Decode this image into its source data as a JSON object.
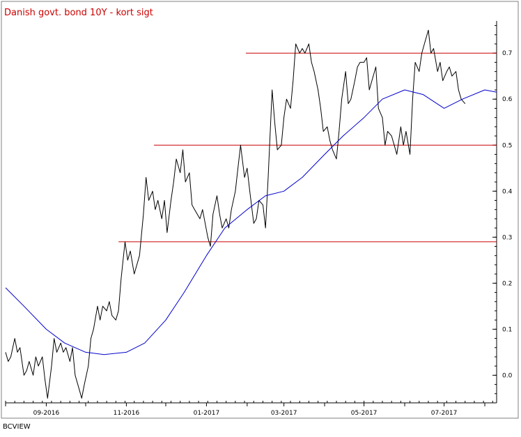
{
  "footer": "BCVIEW",
  "chart_data": {
    "type": "line",
    "title": "Danish govt. bond 10Y - kort sigt",
    "xlabel": "",
    "ylabel": "",
    "x_tick_labels": [
      "09-2016",
      "11-2016",
      "01-2017",
      "03-2017",
      "05-2017",
      "07-2017"
    ],
    "y_ticks": [
      0.0,
      0.1,
      0.2,
      0.3,
      0.4,
      0.5,
      0.6,
      0.7
    ],
    "y_tick_labels": [
      "0.0",
      "0.1",
      "0.2",
      "0.3",
      "0.4",
      "0.5",
      "0.6",
      "0.7"
    ],
    "ylim": [
      -0.06,
      0.77
    ],
    "xlim": [
      "2016-08-01",
      "2017-08-10"
    ],
    "y_axis_position": "right",
    "grid": false,
    "legend": "none",
    "colors": {
      "price": "#000000",
      "moving_average": "#0000cc",
      "levels": "#cc0000",
      "title": "#cc0000"
    },
    "horizontal_lines": [
      {
        "y": 0.29,
        "from": "2016-10-26",
        "to": "2017-08-10"
      },
      {
        "y": 0.5,
        "from": "2016-11-22",
        "to": "2017-08-10"
      },
      {
        "y": 0.7,
        "from": "2017-01-31",
        "to": "2017-08-10"
      }
    ],
    "series": [
      {
        "style": "price",
        "points": [
          [
            "2016-08-01",
            0.05
          ],
          [
            "2016-08-03",
            0.03
          ],
          [
            "2016-08-05",
            0.04
          ],
          [
            "2016-08-08",
            0.08
          ],
          [
            "2016-08-10",
            0.05
          ],
          [
            "2016-08-12",
            0.06
          ],
          [
            "2016-08-15",
            0.0
          ],
          [
            "2016-08-17",
            0.01
          ],
          [
            "2016-08-19",
            0.03
          ],
          [
            "2016-08-22",
            0.0
          ],
          [
            "2016-08-24",
            0.04
          ],
          [
            "2016-08-26",
            0.02
          ],
          [
            "2016-08-29",
            0.04
          ],
          [
            "2016-08-31",
            -0.01
          ],
          [
            "2016-09-02",
            -0.05
          ],
          [
            "2016-09-05",
            0.02
          ],
          [
            "2016-09-07",
            0.08
          ],
          [
            "2016-09-09",
            0.05
          ],
          [
            "2016-09-12",
            0.07
          ],
          [
            "2016-09-14",
            0.05
          ],
          [
            "2016-09-16",
            0.06
          ],
          [
            "2016-09-19",
            0.03
          ],
          [
            "2016-09-21",
            0.06
          ],
          [
            "2016-09-23",
            0.0
          ],
          [
            "2016-09-26",
            -0.03
          ],
          [
            "2016-09-28",
            -0.05
          ],
          [
            "2016-09-30",
            -0.02
          ],
          [
            "2016-10-03",
            0.02
          ],
          [
            "2016-10-05",
            0.08
          ],
          [
            "2016-10-07",
            0.1
          ],
          [
            "2016-10-10",
            0.15
          ],
          [
            "2016-10-12",
            0.12
          ],
          [
            "2016-10-14",
            0.15
          ],
          [
            "2016-10-17",
            0.14
          ],
          [
            "2016-10-19",
            0.16
          ],
          [
            "2016-10-21",
            0.13
          ],
          [
            "2016-10-24",
            0.12
          ],
          [
            "2016-10-26",
            0.14
          ],
          [
            "2016-10-28",
            0.21
          ],
          [
            "2016-10-31",
            0.29
          ],
          [
            "2016-11-02",
            0.25
          ],
          [
            "2016-11-04",
            0.27
          ],
          [
            "2016-11-07",
            0.22
          ],
          [
            "2016-11-09",
            0.24
          ],
          [
            "2016-11-11",
            0.26
          ],
          [
            "2016-11-14",
            0.35
          ],
          [
            "2016-11-16",
            0.43
          ],
          [
            "2016-11-18",
            0.38
          ],
          [
            "2016-11-21",
            0.4
          ],
          [
            "2016-11-23",
            0.36
          ],
          [
            "2016-11-25",
            0.38
          ],
          [
            "2016-11-28",
            0.34
          ],
          [
            "2016-11-30",
            0.38
          ],
          [
            "2016-12-02",
            0.31
          ],
          [
            "2016-12-05",
            0.38
          ],
          [
            "2016-12-07",
            0.42
          ],
          [
            "2016-12-09",
            0.47
          ],
          [
            "2016-12-12",
            0.44
          ],
          [
            "2016-12-14",
            0.49
          ],
          [
            "2016-12-16",
            0.42
          ],
          [
            "2016-12-19",
            0.44
          ],
          [
            "2016-12-21",
            0.37
          ],
          [
            "2016-12-23",
            0.36
          ],
          [
            "2016-12-27",
            0.34
          ],
          [
            "2016-12-29",
            0.36
          ],
          [
            "2017-01-02",
            0.3
          ],
          [
            "2017-01-04",
            0.28
          ],
          [
            "2017-01-06",
            0.35
          ],
          [
            "2017-01-09",
            0.39
          ],
          [
            "2017-01-11",
            0.35
          ],
          [
            "2017-01-13",
            0.32
          ],
          [
            "2017-01-16",
            0.34
          ],
          [
            "2017-01-18",
            0.32
          ],
          [
            "2017-01-20",
            0.36
          ],
          [
            "2017-01-23",
            0.4
          ],
          [
            "2017-01-25",
            0.45
          ],
          [
            "2017-01-27",
            0.5
          ],
          [
            "2017-01-30",
            0.43
          ],
          [
            "2017-02-01",
            0.45
          ],
          [
            "2017-02-03",
            0.4
          ],
          [
            "2017-02-06",
            0.33
          ],
          [
            "2017-02-08",
            0.34
          ],
          [
            "2017-02-10",
            0.38
          ],
          [
            "2017-02-13",
            0.37
          ],
          [
            "2017-02-15",
            0.32
          ],
          [
            "2017-02-17",
            0.43
          ],
          [
            "2017-02-20",
            0.62
          ],
          [
            "2017-02-22",
            0.55
          ],
          [
            "2017-02-24",
            0.49
          ],
          [
            "2017-02-27",
            0.5
          ],
          [
            "2017-03-01",
            0.56
          ],
          [
            "2017-03-03",
            0.6
          ],
          [
            "2017-03-06",
            0.58
          ],
          [
            "2017-03-08",
            0.64
          ],
          [
            "2017-03-10",
            0.72
          ],
          [
            "2017-03-13",
            0.7
          ],
          [
            "2017-03-15",
            0.71
          ],
          [
            "2017-03-17",
            0.7
          ],
          [
            "2017-03-20",
            0.72
          ],
          [
            "2017-03-22",
            0.68
          ],
          [
            "2017-03-24",
            0.66
          ],
          [
            "2017-03-27",
            0.62
          ],
          [
            "2017-03-29",
            0.58
          ],
          [
            "2017-03-31",
            0.53
          ],
          [
            "2017-04-03",
            0.54
          ],
          [
            "2017-04-05",
            0.51
          ],
          [
            "2017-04-07",
            0.49
          ],
          [
            "2017-04-10",
            0.47
          ],
          [
            "2017-04-12",
            0.53
          ],
          [
            "2017-04-14",
            0.6
          ],
          [
            "2017-04-17",
            0.66
          ],
          [
            "2017-04-19",
            0.59
          ],
          [
            "2017-04-21",
            0.6
          ],
          [
            "2017-04-24",
            0.64
          ],
          [
            "2017-04-26",
            0.67
          ],
          [
            "2017-04-28",
            0.68
          ],
          [
            "2017-05-01",
            0.68
          ],
          [
            "2017-05-03",
            0.69
          ],
          [
            "2017-05-05",
            0.62
          ],
          [
            "2017-05-08",
            0.65
          ],
          [
            "2017-05-10",
            0.67
          ],
          [
            "2017-05-12",
            0.58
          ],
          [
            "2017-05-15",
            0.56
          ],
          [
            "2017-05-17",
            0.5
          ],
          [
            "2017-05-19",
            0.53
          ],
          [
            "2017-05-22",
            0.52
          ],
          [
            "2017-05-24",
            0.5
          ],
          [
            "2017-05-26",
            0.48
          ],
          [
            "2017-05-29",
            0.54
          ],
          [
            "2017-05-31",
            0.5
          ],
          [
            "2017-06-02",
            0.53
          ],
          [
            "2017-06-05",
            0.48
          ],
          [
            "2017-06-07",
            0.6
          ],
          [
            "2017-06-09",
            0.68
          ],
          [
            "2017-06-12",
            0.66
          ],
          [
            "2017-06-14",
            0.7
          ],
          [
            "2017-06-16",
            0.72
          ],
          [
            "2017-06-19",
            0.75
          ],
          [
            "2017-06-21",
            0.7
          ],
          [
            "2017-06-23",
            0.71
          ],
          [
            "2017-06-26",
            0.66
          ],
          [
            "2017-06-28",
            0.68
          ],
          [
            "2017-06-30",
            0.64
          ],
          [
            "2017-07-03",
            0.66
          ],
          [
            "2017-07-05",
            0.67
          ],
          [
            "2017-07-07",
            0.65
          ],
          [
            "2017-07-10",
            0.66
          ],
          [
            "2017-07-12",
            0.62
          ],
          [
            "2017-07-14",
            0.6
          ],
          [
            "2017-07-17",
            0.59
          ]
        ]
      },
      {
        "style": "moving_average",
        "points": [
          [
            "2016-08-01",
            0.19
          ],
          [
            "2016-08-15",
            0.15
          ],
          [
            "2016-09-01",
            0.1
          ],
          [
            "2016-09-15",
            0.07
          ],
          [
            "2016-10-01",
            0.05
          ],
          [
            "2016-10-15",
            0.045
          ],
          [
            "2016-11-01",
            0.05
          ],
          [
            "2016-11-15",
            0.07
          ],
          [
            "2016-12-01",
            0.12
          ],
          [
            "2016-12-15",
            0.18
          ],
          [
            "2017-01-01",
            0.26
          ],
          [
            "2017-01-15",
            0.32
          ],
          [
            "2017-02-01",
            0.36
          ],
          [
            "2017-02-15",
            0.39
          ],
          [
            "2017-03-01",
            0.4
          ],
          [
            "2017-03-15",
            0.43
          ],
          [
            "2017-04-01",
            0.48
          ],
          [
            "2017-04-15",
            0.52
          ],
          [
            "2017-05-01",
            0.56
          ],
          [
            "2017-05-15",
            0.6
          ],
          [
            "2017-06-01",
            0.62
          ],
          [
            "2017-06-15",
            0.61
          ],
          [
            "2017-07-01",
            0.58
          ],
          [
            "2017-07-15",
            0.6
          ],
          [
            "2017-08-01",
            0.62
          ],
          [
            "2017-08-10",
            0.615
          ]
        ]
      }
    ]
  }
}
